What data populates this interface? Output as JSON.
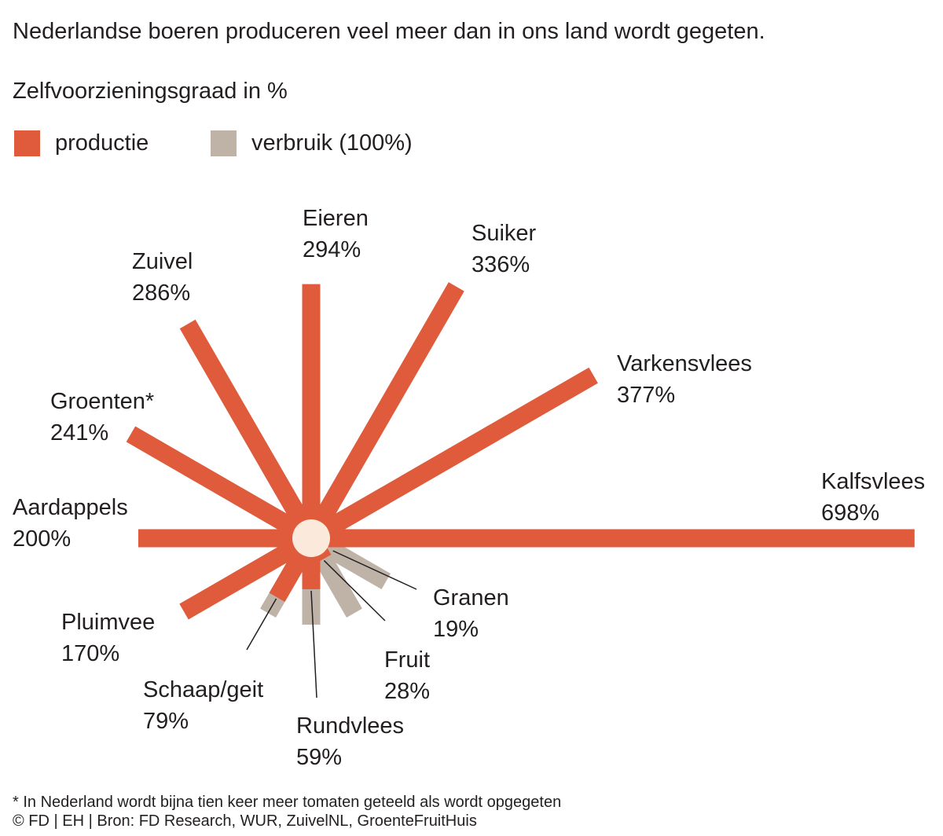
{
  "header": {
    "subtitle": "Nederlandse boeren produceren veel meer dan in ons land wordt gegeten.",
    "measure": "Zelfvoorzieningsgraad in %"
  },
  "legend": {
    "production_label": "productie",
    "consumption_label": "verbruik (100%)"
  },
  "colors": {
    "production": "#e05a3c",
    "consumption": "#bfb3a8",
    "center": "#fbeadc",
    "text": "#231f20"
  },
  "chart_data": {
    "type": "radial-bar",
    "title": "Zelfvoorzieningsgraad in %",
    "baseline_value": 100,
    "baseline_label": "verbruik (100%)",
    "series": [
      {
        "name": "productie",
        "unit": "%"
      }
    ],
    "categories": [
      {
        "name": "Kalfsvlees",
        "value": 698,
        "label": "698%"
      },
      {
        "name": "Varkensvlees",
        "value": 377,
        "label": "377%"
      },
      {
        "name": "Suiker",
        "value": 336,
        "label": "336%"
      },
      {
        "name": "Eieren",
        "value": 294,
        "label": "294%"
      },
      {
        "name": "Zuivel",
        "value": 286,
        "label": "286%"
      },
      {
        "name": "Groenten*",
        "value": 241,
        "label": "241%"
      },
      {
        "name": "Aardappels",
        "value": 200,
        "label": "200%"
      },
      {
        "name": "Pluimvee",
        "value": 170,
        "label": "170%"
      },
      {
        "name": "Schaap/geit",
        "value": 79,
        "label": "79%"
      },
      {
        "name": "Rundvlees",
        "value": 59,
        "label": "59%"
      },
      {
        "name": "Fruit",
        "value": 28,
        "label": "28%"
      },
      {
        "name": "Granen",
        "value": 19,
        "label": "19%"
      }
    ]
  },
  "footnote": {
    "note": "* In Nederland wordt bijna tien keer meer tomaten geteeld als wordt opgegeten",
    "source": "© FD | EH | Bron: FD Research, WUR, ZuivelNL, GroenteFruitHuis"
  }
}
